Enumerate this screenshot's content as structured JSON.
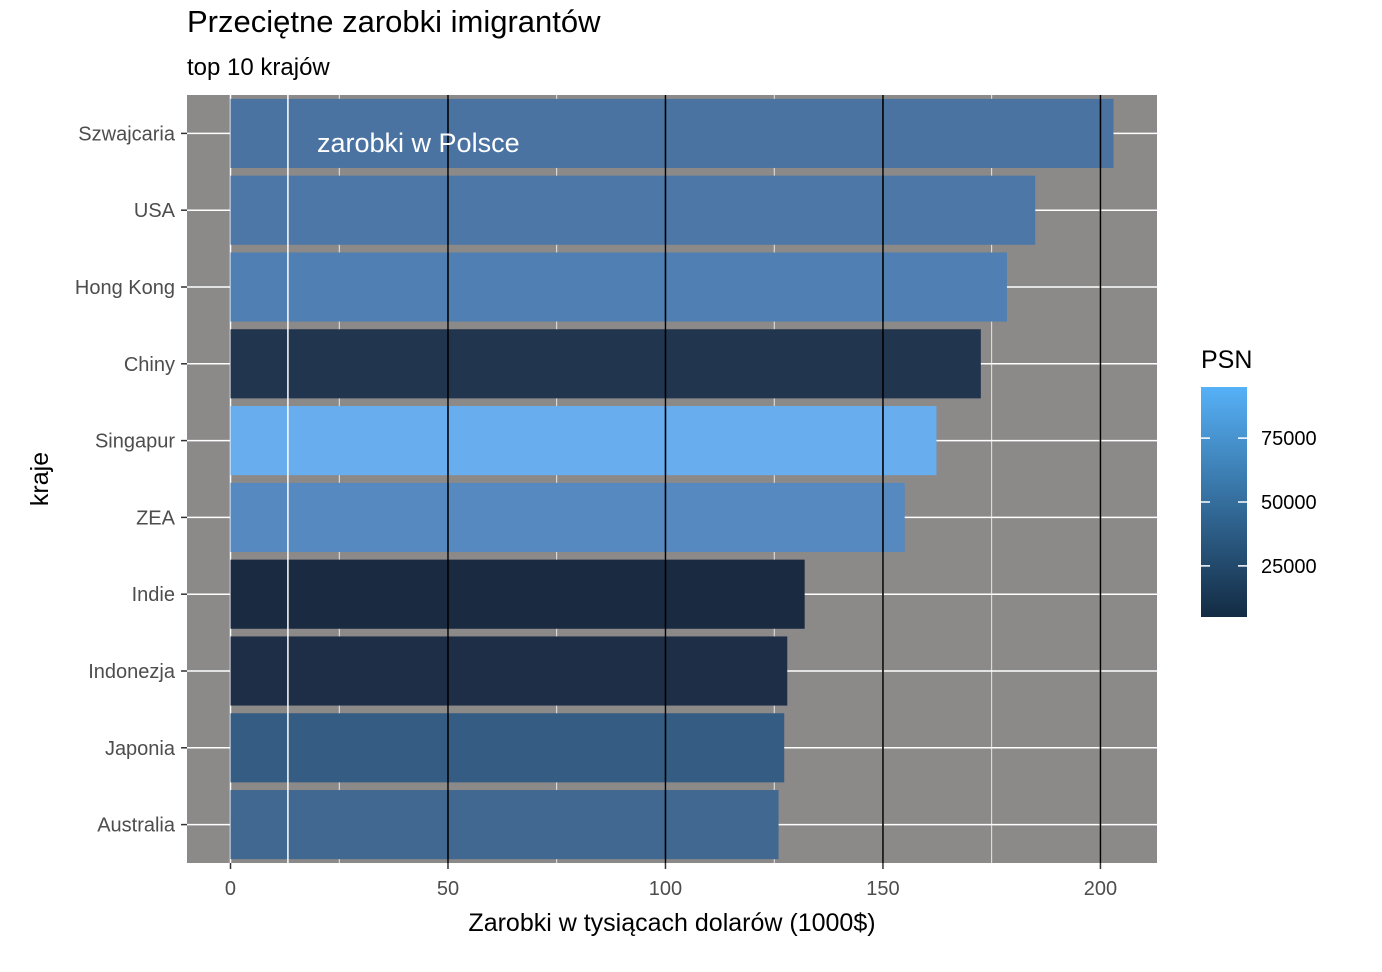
{
  "chart_data": {
    "type": "bar",
    "orientation": "horizontal",
    "title": "Przeciętne zarobki imigrantów",
    "subtitle": "top 10 krajów",
    "xlabel": "Zarobki w tysiącach dolarów (1000$)",
    "ylabel": "kraje",
    "xlim": [
      -10,
      213
    ],
    "x_ticks": [
      0,
      50,
      100,
      150,
      200
    ],
    "categories": [
      "Szwajcaria",
      "USA",
      "Hong Kong",
      "Chiny",
      "Singapur",
      "ZEA",
      "Indie",
      "Indonezja",
      "Japonia",
      "Australia"
    ],
    "values": [
      203,
      185,
      178.5,
      172.5,
      162.3,
      155,
      132,
      128,
      127.3,
      126
    ],
    "fill_values": [
      52000,
      55000,
      60000,
      15000,
      95000,
      70000,
      5000,
      8000,
      35000,
      45000
    ],
    "bar_colors": [
      "#4b73a2",
      "#4d77a7",
      "#5080b3",
      "#22354f",
      "#68aeef",
      "#5689c0",
      "#1a2a40",
      "#1d2e46",
      "#355c82",
      "#406891"
    ],
    "reference_line": {
      "x": 13.2,
      "label": "zarobki w Polsce"
    },
    "vertical_lines": [
      50,
      100,
      150,
      200
    ],
    "legend": {
      "title": "PSN",
      "position": "right",
      "ticks": [
        25000,
        50000,
        75000
      ],
      "range": [
        5000,
        95000
      ],
      "color_low": "#132b43",
      "color_high": "#56b1f7"
    },
    "panel_background": "#8c8989",
    "grid": true
  }
}
